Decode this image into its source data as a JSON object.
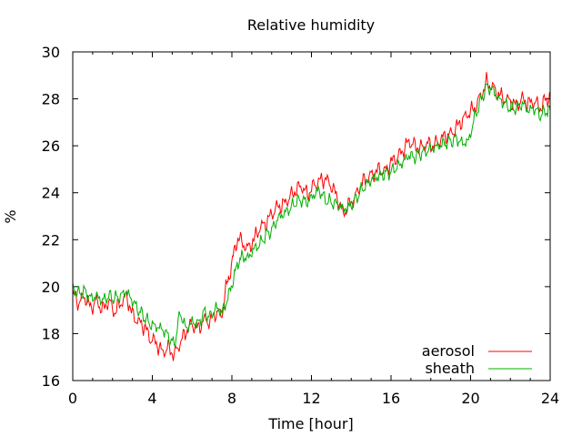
{
  "chart_data": {
    "type": "line",
    "title": "Relative humidity",
    "xlabel": "Time [hour]",
    "ylabel": "%",
    "xlim": [
      0,
      24
    ],
    "ylim": [
      16,
      30
    ],
    "xticks": [
      "0",
      "4",
      "8",
      "12",
      "16",
      "20",
      "24"
    ],
    "yticks": [
      "16",
      "18",
      "20",
      "22",
      "24",
      "26",
      "28",
      "30"
    ],
    "grid": false,
    "legend_position": "bottom-right",
    "series": [
      {
        "name": "aerosol",
        "color": "#ff0000",
        "points": [
          [
            0.0,
            19.7
          ],
          [
            0.3,
            19.3
          ],
          [
            0.6,
            19.6
          ],
          [
            0.9,
            19.1
          ],
          [
            1.2,
            19.4
          ],
          [
            1.5,
            19.0
          ],
          [
            1.8,
            19.4
          ],
          [
            2.1,
            18.9
          ],
          [
            2.4,
            19.3
          ],
          [
            2.7,
            19.6
          ],
          [
            3.0,
            18.8
          ],
          [
            3.3,
            18.5
          ],
          [
            3.6,
            18.3
          ],
          [
            3.9,
            17.8
          ],
          [
            4.2,
            17.6
          ],
          [
            4.5,
            17.2
          ],
          [
            4.8,
            17.4
          ],
          [
            5.1,
            17.1
          ],
          [
            5.4,
            17.6
          ],
          [
            5.7,
            18.1
          ],
          [
            6.0,
            18.4
          ],
          [
            6.3,
            18.2
          ],
          [
            6.6,
            18.6
          ],
          [
            6.9,
            18.5
          ],
          [
            7.2,
            18.9
          ],
          [
            7.5,
            18.8
          ],
          [
            7.7,
            19.9
          ],
          [
            7.9,
            20.6
          ],
          [
            8.1,
            21.4
          ],
          [
            8.3,
            22.1
          ],
          [
            8.5,
            21.9
          ],
          [
            8.8,
            21.6
          ],
          [
            9.1,
            22.0
          ],
          [
            9.4,
            22.5
          ],
          [
            9.7,
            22.7
          ],
          [
            10.0,
            23.1
          ],
          [
            10.3,
            23.4
          ],
          [
            10.6,
            23.5
          ],
          [
            10.9,
            23.8
          ],
          [
            11.2,
            24.1
          ],
          [
            11.5,
            24.3
          ],
          [
            11.8,
            23.9
          ],
          [
            12.1,
            24.3
          ],
          [
            12.4,
            24.5
          ],
          [
            12.7,
            24.6
          ],
          [
            13.0,
            24.3
          ],
          [
            13.3,
            23.8
          ],
          [
            13.6,
            23.1
          ],
          [
            13.9,
            23.5
          ],
          [
            14.2,
            23.8
          ],
          [
            14.5,
            24.4
          ],
          [
            14.8,
            24.6
          ],
          [
            15.1,
            24.8
          ],
          [
            15.4,
            25.0
          ],
          [
            15.7,
            24.9
          ],
          [
            16.0,
            25.3
          ],
          [
            16.3,
            25.5
          ],
          [
            16.6,
            25.8
          ],
          [
            16.9,
            26.2
          ],
          [
            17.2,
            26.0
          ],
          [
            17.5,
            25.9
          ],
          [
            17.8,
            26.1
          ],
          [
            18.1,
            26.0
          ],
          [
            18.4,
            26.2
          ],
          [
            18.7,
            26.4
          ],
          [
            19.0,
            26.5
          ],
          [
            19.3,
            26.8
          ],
          [
            19.6,
            27.1
          ],
          [
            19.9,
            27.4
          ],
          [
            20.2,
            27.6
          ],
          [
            20.5,
            28.1
          ],
          [
            20.8,
            28.7
          ],
          [
            21.1,
            28.5
          ],
          [
            21.4,
            28.2
          ],
          [
            21.7,
            28.0
          ],
          [
            22.0,
            27.9
          ],
          [
            22.3,
            27.7
          ],
          [
            22.6,
            28.0
          ],
          [
            22.9,
            27.8
          ],
          [
            23.2,
            27.9
          ],
          [
            23.5,
            27.6
          ],
          [
            23.8,
            28.0
          ],
          [
            24.0,
            28.1
          ]
        ]
      },
      {
        "name": "sheath",
        "color": "#00b000",
        "points": [
          [
            0.0,
            19.9
          ],
          [
            0.3,
            19.7
          ],
          [
            0.6,
            19.8
          ],
          [
            0.9,
            19.5
          ],
          [
            1.2,
            19.6
          ],
          [
            1.5,
            19.4
          ],
          [
            1.8,
            19.6
          ],
          [
            2.1,
            19.5
          ],
          [
            2.4,
            19.6
          ],
          [
            2.7,
            19.8
          ],
          [
            3.0,
            19.4
          ],
          [
            3.3,
            19.0
          ],
          [
            3.6,
            18.7
          ],
          [
            3.9,
            18.4
          ],
          [
            4.2,
            18.3
          ],
          [
            4.5,
            18.2
          ],
          [
            4.8,
            17.9
          ],
          [
            5.1,
            17.5
          ],
          [
            5.4,
            18.9
          ],
          [
            5.7,
            18.2
          ],
          [
            6.0,
            18.5
          ],
          [
            6.3,
            18.4
          ],
          [
            6.6,
            18.9
          ],
          [
            6.9,
            18.7
          ],
          [
            7.2,
            19.1
          ],
          [
            7.5,
            18.9
          ],
          [
            7.7,
            19.3
          ],
          [
            7.9,
            19.8
          ],
          [
            8.1,
            20.4
          ],
          [
            8.3,
            21.0
          ],
          [
            8.5,
            21.3
          ],
          [
            8.8,
            21.2
          ],
          [
            9.1,
            21.6
          ],
          [
            9.4,
            21.8
          ],
          [
            9.7,
            22.2
          ],
          [
            10.0,
            22.4
          ],
          [
            10.3,
            22.9
          ],
          [
            10.6,
            23.1
          ],
          [
            10.9,
            23.3
          ],
          [
            11.2,
            23.6
          ],
          [
            11.5,
            23.7
          ],
          [
            11.8,
            23.6
          ],
          [
            12.1,
            23.9
          ],
          [
            12.4,
            24.1
          ],
          [
            12.7,
            23.7
          ],
          [
            13.0,
            23.6
          ],
          [
            13.3,
            23.5
          ],
          [
            13.6,
            23.3
          ],
          [
            13.9,
            23.4
          ],
          [
            14.2,
            23.7
          ],
          [
            14.5,
            24.1
          ],
          [
            14.8,
            24.4
          ],
          [
            15.1,
            24.6
          ],
          [
            15.4,
            24.7
          ],
          [
            15.7,
            24.8
          ],
          [
            16.0,
            24.9
          ],
          [
            16.3,
            25.1
          ],
          [
            16.6,
            25.3
          ],
          [
            16.9,
            25.6
          ],
          [
            17.2,
            25.5
          ],
          [
            17.5,
            25.7
          ],
          [
            17.8,
            25.8
          ],
          [
            18.1,
            25.9
          ],
          [
            18.4,
            26.0
          ],
          [
            18.7,
            26.1
          ],
          [
            19.0,
            26.2
          ],
          [
            19.3,
            26.3
          ],
          [
            19.6,
            26.1
          ],
          [
            19.9,
            26.2
          ],
          [
            20.2,
            27.2
          ],
          [
            20.5,
            27.9
          ],
          [
            20.8,
            28.5
          ],
          [
            21.1,
            28.4
          ],
          [
            21.4,
            28.0
          ],
          [
            21.7,
            27.8
          ],
          [
            22.0,
            27.6
          ],
          [
            22.3,
            27.6
          ],
          [
            22.6,
            27.8
          ],
          [
            22.9,
            27.5
          ],
          [
            23.2,
            27.6
          ],
          [
            23.5,
            27.3
          ],
          [
            23.8,
            27.5
          ],
          [
            24.0,
            27.5
          ]
        ]
      }
    ]
  }
}
